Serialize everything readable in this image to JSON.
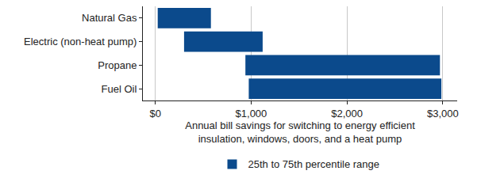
{
  "chart_data": {
    "type": "bar",
    "orientation": "horizontal",
    "categories": [
      "Natural Gas",
      "Electric (non-heat pump)",
      "Propane",
      "Fuel Oil"
    ],
    "series": [
      {
        "name": "25th to 75th percentile range",
        "color": "#0b4a8c",
        "low": [
          25,
          300,
          940,
          975
        ],
        "high": [
          580,
          1120,
          2970,
          2985
        ]
      }
    ],
    "xlabel": "Annual bill savings for switching to energy efficient\ninsulation, windows, doors, and a heat pump",
    "xlim": [
      -130,
      3150
    ],
    "xticks": [
      {
        "value": 0,
        "label": "$0"
      },
      {
        "value": 1000,
        "label": "$1,000"
      },
      {
        "value": 2000,
        "label": "$2,000"
      },
      {
        "value": 3000,
        "label": "$3,000"
      }
    ],
    "grid": true,
    "legend": "bottom"
  }
}
